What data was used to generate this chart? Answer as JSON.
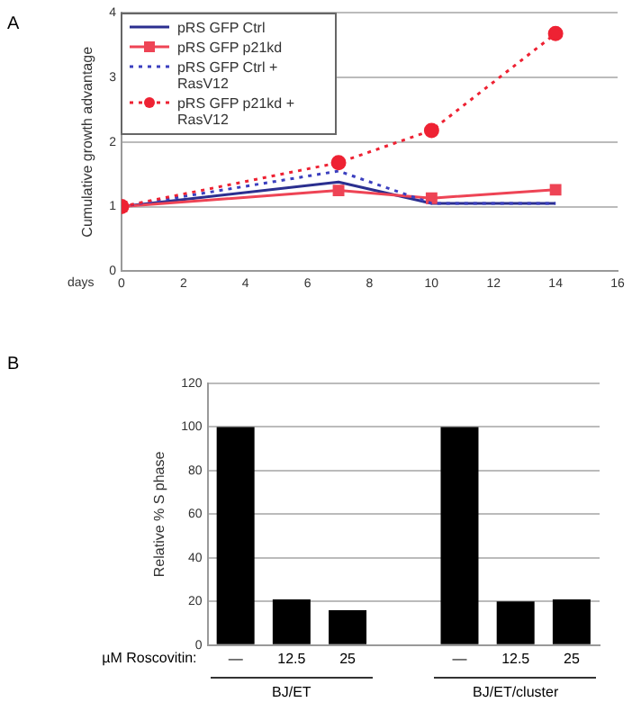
{
  "chart_data": [
    {
      "type": "line",
      "ylabel": "Cumulative growth advantage",
      "xlabel": "days",
      "annotations": [
        "A"
      ],
      "xlim": [
        0,
        16
      ],
      "xticks": [
        0,
        2,
        4,
        6,
        8,
        10,
        12,
        14,
        16
      ],
      "ylim": [
        0,
        4
      ],
      "yticks": [
        0,
        1,
        2,
        3,
        4
      ],
      "grid": "y",
      "legend": "top left",
      "series": [
        {
          "name": "pRS GFP Ctrl",
          "color": "#2b2f8f",
          "x": [
            0,
            7,
            10,
            14
          ],
          "values": [
            1,
            1.38,
            1.05,
            1.05
          ],
          "marker": "none",
          "line_style": "solid"
        },
        {
          "name": "pRS GFP p21kd",
          "color": "#ee4455",
          "x": [
            0,
            7,
            10,
            14
          ],
          "values": [
            1,
            1.25,
            1.13,
            1.26
          ],
          "marker": "square",
          "line_style": "solid"
        },
        {
          "name": "pRS GFP Ctrl + RasV12",
          "color": "#3b3fbf",
          "x": [
            0,
            7,
            10,
            14
          ],
          "values": [
            1,
            1.55,
            1.05,
            1.05
          ],
          "marker": "none",
          "line_style": "dotted"
        },
        {
          "name": "pRS GFP p21kd + RasV12",
          "color": "#ee2233",
          "x": [
            0,
            7,
            10,
            14
          ],
          "values": [
            1,
            1.68,
            2.18,
            3.68
          ],
          "marker": "circle",
          "line_style": "dotted"
        }
      ]
    },
    {
      "type": "bar",
      "ylabel": "Relative % S phase",
      "annotations": [
        "B",
        "µM Roscovitin:",
        "BJ/ET",
        "BJ/ET/cluster"
      ],
      "categories": [
        "—",
        "12.5",
        "25",
        null,
        "—",
        "12.5",
        "25"
      ],
      "values": [
        100,
        21,
        16,
        null,
        100,
        20,
        21
      ],
      "color": "#000000",
      "ylim": [
        0,
        120
      ],
      "yticks": [
        0,
        20,
        40,
        60,
        80,
        100,
        120
      ],
      "grid": "y"
    }
  ]
}
